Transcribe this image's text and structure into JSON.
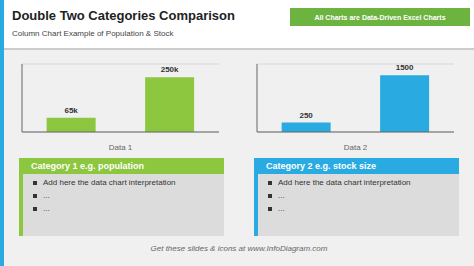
{
  "title": "Double Two Categories Comparison",
  "subtitle": "Column Chart Example of Population & Stock",
  "annotations": [
    "All Charts are Data-Driven Excel Charts",
    "Get these slides & icons at www.InfoDiagram.com"
  ],
  "chart_data": [
    {
      "type": "bar",
      "xlabel": "Data 1",
      "categories": [
        null,
        null
      ],
      "values": [
        65,
        250
      ],
      "value_labels": [
        "65k",
        "250k"
      ],
      "data_labels": true,
      "color": "#8dc63f",
      "ylim": [
        0,
        310
      ],
      "yticks": [
        0,
        100,
        200,
        300
      ],
      "grid": true,
      "tick_labels": false,
      "annotations": [
        "Category 1 e.g. population",
        "Add here the data chart interpretation",
        "...",
        "..."
      ]
    },
    {
      "type": "bar",
      "xlabel": "Data 2",
      "categories": [
        null,
        null
      ],
      "values": [
        250,
        1500
      ],
      "data_labels": true,
      "color": "#29abe2",
      "ylim": [
        0,
        1800
      ],
      "yticks": [
        0,
        600,
        1200,
        1800
      ],
      "grid": true,
      "tick_labels": false,
      "annotations": [
        "Category 2 e.g. stock size",
        "Add here the data chart interpretation",
        "...",
        "..."
      ]
    }
  ]
}
